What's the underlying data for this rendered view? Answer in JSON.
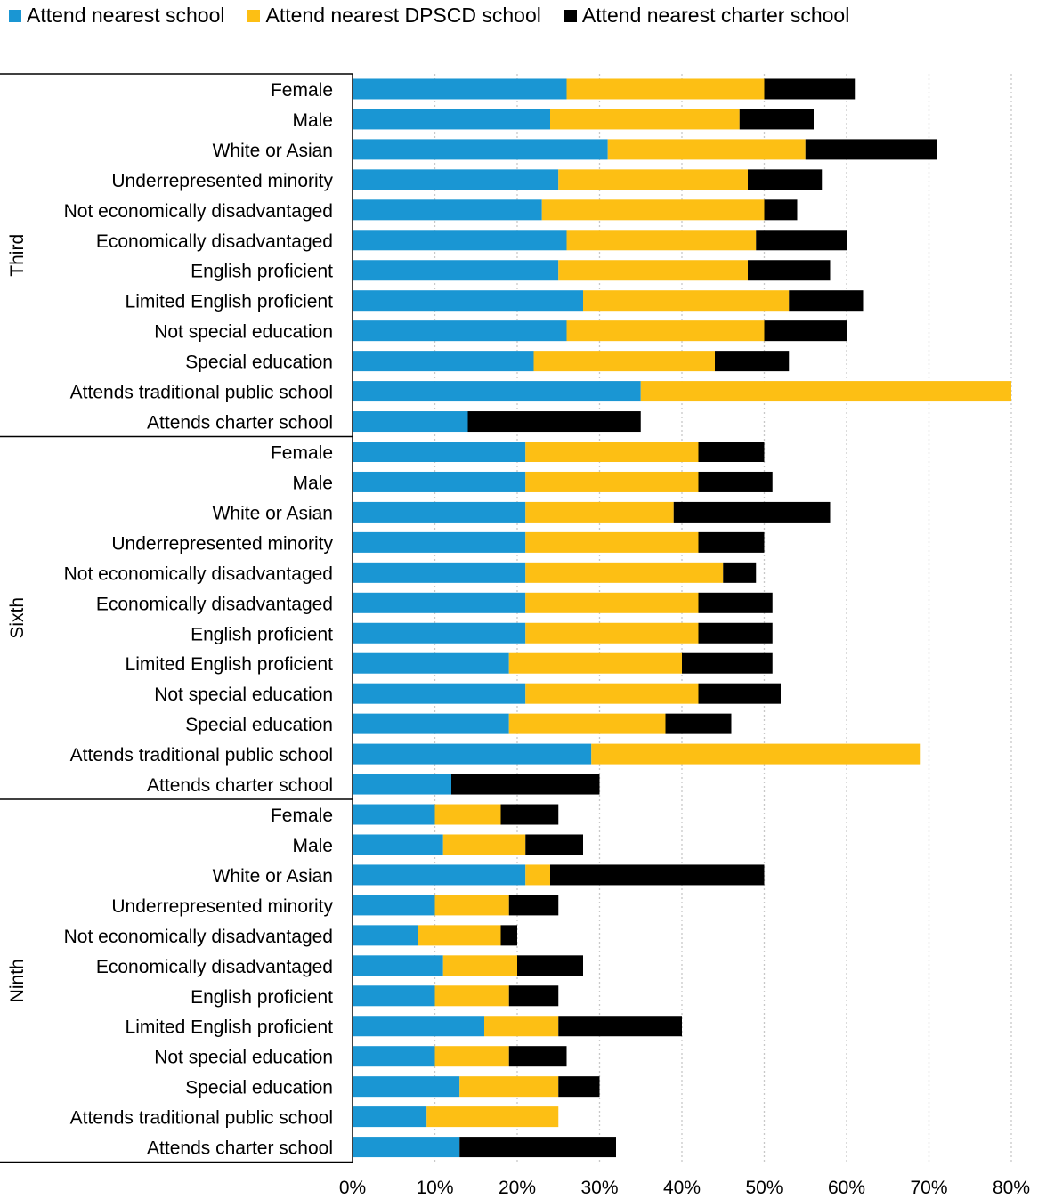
{
  "chart_data": {
    "type": "bar",
    "orientation": "horizontal",
    "stacked": true,
    "legend_position": "top-left",
    "grid": "vertical dotted",
    "xlim": [
      0,
      80
    ],
    "x_ticks": [
      "0%",
      "10%",
      "20%",
      "30%",
      "40%",
      "50%",
      "60%",
      "70%",
      "80%"
    ],
    "series": [
      {
        "name": "Attend nearest school",
        "color": "#1a96d3"
      },
      {
        "name": "Attend nearest DPSCD school",
        "color": "#fdbf14"
      },
      {
        "name": "Attend nearest charter school",
        "color": "#000000"
      }
    ],
    "groups": [
      {
        "name": "Third",
        "rows": [
          {
            "label": "Female",
            "values": [
              26,
              24,
              11
            ]
          },
          {
            "label": "Male",
            "values": [
              24,
              23,
              9
            ]
          },
          {
            "label": "White or Asian",
            "values": [
              31,
              24,
              16
            ]
          },
          {
            "label": "Underrepresented minority",
            "values": [
              25,
              23,
              9
            ]
          },
          {
            "label": "Not economically disadvantaged",
            "values": [
              23,
              27,
              4
            ]
          },
          {
            "label": "Economically disadvantaged",
            "values": [
              26,
              23,
              11
            ]
          },
          {
            "label": "English proficient",
            "values": [
              25,
              23,
              10
            ]
          },
          {
            "label": "Limited English proficient",
            "values": [
              28,
              25,
              9
            ]
          },
          {
            "label": "Not special education",
            "values": [
              26,
              24,
              10
            ]
          },
          {
            "label": "Special education",
            "values": [
              22,
              22,
              9
            ]
          },
          {
            "label": "Attends traditional public school",
            "values": [
              35,
              45,
              0
            ]
          },
          {
            "label": "Attends charter school",
            "values": [
              14,
              0,
              21
            ]
          }
        ]
      },
      {
        "name": "Sixth",
        "rows": [
          {
            "label": "Female",
            "values": [
              21,
              21,
              8
            ]
          },
          {
            "label": "Male",
            "values": [
              21,
              21,
              9
            ]
          },
          {
            "label": "White or Asian",
            "values": [
              21,
              18,
              19
            ]
          },
          {
            "label": "Underrepresented minority",
            "values": [
              21,
              21,
              8
            ]
          },
          {
            "label": "Not economically disadvantaged",
            "values": [
              21,
              24,
              4
            ]
          },
          {
            "label": "Economically disadvantaged",
            "values": [
              21,
              21,
              9
            ]
          },
          {
            "label": "English proficient",
            "values": [
              21,
              21,
              9
            ]
          },
          {
            "label": "Limited English proficient",
            "values": [
              19,
              21,
              11
            ]
          },
          {
            "label": "Not special education",
            "values": [
              21,
              21,
              10
            ]
          },
          {
            "label": "Special education",
            "values": [
              19,
              19,
              8
            ]
          },
          {
            "label": "Attends traditional public school",
            "values": [
              29,
              40,
              0
            ]
          },
          {
            "label": "Attends charter school",
            "values": [
              12,
              0,
              18
            ]
          }
        ]
      },
      {
        "name": "Ninth",
        "rows": [
          {
            "label": "Female",
            "values": [
              10,
              8,
              7
            ]
          },
          {
            "label": "Male",
            "values": [
              11,
              10,
              7
            ]
          },
          {
            "label": "White or Asian",
            "values": [
              21,
              3,
              26
            ]
          },
          {
            "label": "Underrepresented minority",
            "values": [
              10,
              9,
              6
            ]
          },
          {
            "label": "Not economically disadvantaged",
            "values": [
              8,
              10,
              2
            ]
          },
          {
            "label": "Economically disadvantaged",
            "values": [
              11,
              9,
              8
            ]
          },
          {
            "label": "English proficient",
            "values": [
              10,
              9,
              6
            ]
          },
          {
            "label": "Limited English proficient",
            "values": [
              16,
              9,
              15
            ]
          },
          {
            "label": "Not special education",
            "values": [
              10,
              9,
              7
            ]
          },
          {
            "label": "Special education",
            "values": [
              13,
              12,
              5
            ]
          },
          {
            "label": "Attends traditional public school",
            "values": [
              9,
              16,
              0
            ]
          },
          {
            "label": "Attends charter school",
            "values": [
              13,
              0,
              19
            ]
          }
        ]
      }
    ]
  }
}
